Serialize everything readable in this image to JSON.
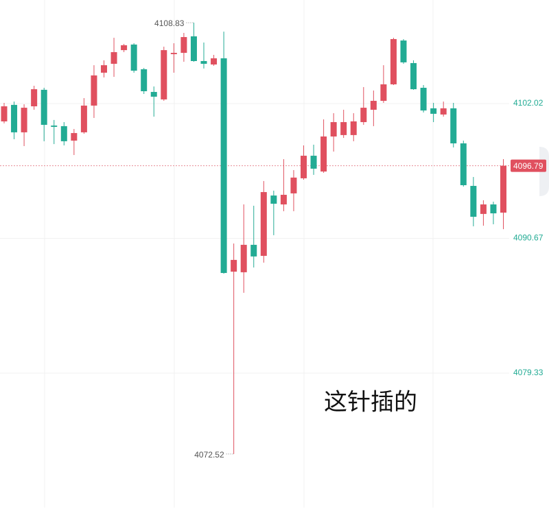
{
  "chart_data": {
    "type": "candlestick",
    "annotation": "这针插的",
    "up_color": "#e0505f",
    "down_color": "#22ab94",
    "ylim": [
      4068.01,
      4110.74
    ],
    "yticks": [
      4079.33,
      4090.67,
      4102.02
    ],
    "grid": true,
    "open": [
      4100.52,
      4101.91,
      4099.6,
      4101.79,
      4103.18,
      4100.17,
      4100.12,
      4098.9,
      4099.6,
      4101.85,
      4104.62,
      4105.37,
      4106.52,
      4106.99,
      4104.91,
      4103.0,
      4102.37,
      4106.18,
      4106.29,
      4107.68,
      4105.6,
      4105.31,
      4105.83,
      4087.87,
      4087.82,
      4090.13,
      4089.2,
      4094.28,
      4093.53,
      4094.46,
      4095.73,
      4097.63,
      4096.3,
      4099.25,
      4099.37,
      4099.37,
      4100.46,
      4101.5,
      4102.25,
      4103.64,
      4107.33,
      4105.43,
      4103.35,
      4101.62,
      4101.1,
      4101.62,
      4098.67,
      4095.09,
      4092.73,
      4093.53,
      4092.84
    ],
    "high": [
      4102.08,
      4102.19,
      4101.96,
      4103.52,
      4103.35,
      4100.64,
      4100.46,
      4099.88,
      4102.48,
      4105.25,
      4105.66,
      4107.56,
      4107.04,
      4107.1,
      4105.02,
      4103.46,
      4106.81,
      4107.1,
      4107.97,
      4108.83,
      4107.16,
      4106.12,
      4108.08,
      4090.24,
      4093.53,
      4093.42,
      4095.5,
      4094.69,
      4097.34,
      4096.42,
      4098.5,
      4098.56,
      4100.69,
      4101.21,
      4101.5,
      4101.21,
      4103.41,
      4103.12,
      4105.25,
      4107.56,
      4107.45,
      4105.66,
      4103.58,
      4102.08,
      4102.19,
      4102.08,
      4098.9,
      4095.84,
      4093.88,
      4093.76,
      4097.34
    ],
    "low": [
      4100.35,
      4099.02,
      4098.44,
      4101.5,
      4098.85,
      4098.61,
      4098.5,
      4097.69,
      4099.48,
      4100.81,
      4104.22,
      4104.27,
      4106.35,
      4104.62,
      4102.83,
      4100.92,
      4102.25,
      4104.62,
      4105.54,
      4105.54,
      4104.97,
      4105.2,
      4087.7,
      4072.52,
      4086.09,
      4088.22,
      4088.63,
      4090.94,
      4092.96,
      4092.96,
      4095.61,
      4096.02,
      4096.19,
      4097.98,
      4099.13,
      4098.85,
      4100.23,
      4100.12,
      4102.08,
      4103.58,
      4105.37,
      4103.18,
      4101.27,
      4100.46,
      4100.92,
      4098.33,
      4095.03,
      4091.69,
      4091.74,
      4091.86,
      4091.45
    ],
    "close": [
      4101.79,
      4099.6,
      4101.67,
      4103.23,
      4100.23,
      4100.06,
      4098.85,
      4099.54,
      4101.85,
      4104.39,
      4105.25,
      4106.35,
      4106.93,
      4104.79,
      4103.06,
      4102.6,
      4106.52,
      4106.29,
      4107.62,
      4105.6,
      4105.37,
      4105.83,
      4087.76,
      4088.86,
      4090.13,
      4089.15,
      4094.57,
      4093.59,
      4094.34,
      4095.79,
      4097.63,
      4096.54,
      4099.25,
      4100.46,
      4100.46,
      4100.52,
      4101.67,
      4102.25,
      4103.64,
      4107.45,
      4105.49,
      4103.23,
      4101.44,
      4101.16,
      4101.62,
      4098.67,
      4095.15,
      4092.49,
      4093.53,
      4092.78,
      4096.79
    ]
  }
}
